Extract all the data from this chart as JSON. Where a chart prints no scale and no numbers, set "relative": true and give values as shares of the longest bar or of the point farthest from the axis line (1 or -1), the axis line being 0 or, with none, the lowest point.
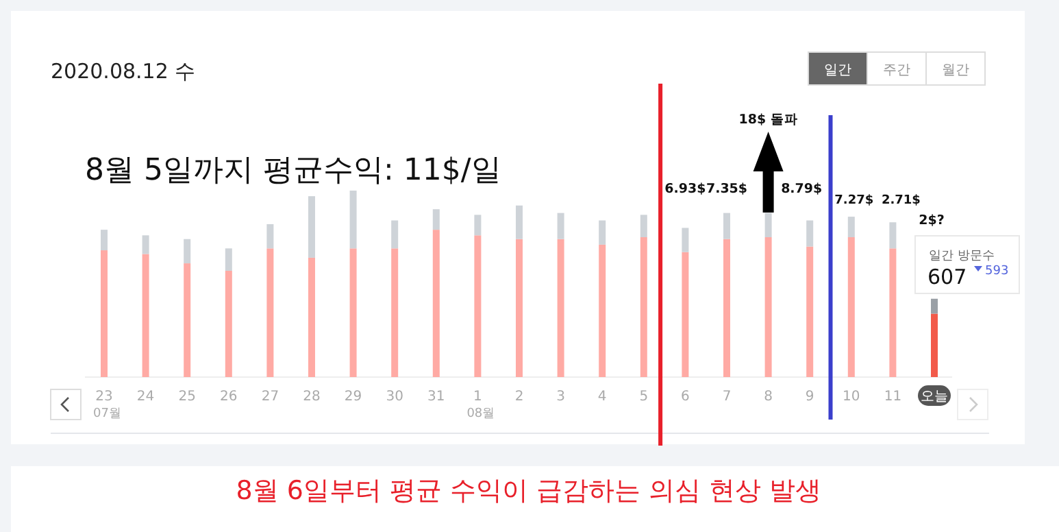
{
  "chart_data": {
    "type": "bar",
    "stacked": true,
    "relative": true,
    "title": "2020.08.12 수",
    "categories": [
      "23",
      "24",
      "25",
      "26",
      "27",
      "28",
      "29",
      "30",
      "31",
      "1",
      "2",
      "3",
      "4",
      "5",
      "6",
      "7",
      "8",
      "9",
      "10",
      "11",
      "오늘"
    ],
    "series": [
      {
        "colors": [
          "#ffaaa4",
          "#ffaaa4",
          "#ffaaa4",
          "#ffaaa4",
          "#ffaaa4",
          "#ffaaa4",
          "#ffaaa4",
          "#ffaaa4",
          "#ffaaa4",
          "#ffaaa4",
          "#ffaaa4",
          "#ffaaa4",
          "#ffaaa4",
          "#ffaaa4",
          "#ffaaa4",
          "#ffaaa4",
          "#ffaaa4",
          "#ffaaa4",
          "#ffaaa4",
          "#ffaaa4",
          "#f25a4a"
        ],
        "values": [
          0.68,
          0.66,
          0.61,
          0.57,
          0.69,
          0.64,
          0.69,
          0.69,
          0.79,
          0.76,
          0.74,
          0.74,
          0.71,
          0.75,
          0.67,
          0.74,
          0.75,
          0.7,
          0.75,
          0.69,
          0.34
        ]
      },
      {
        "colors": [
          "#ced3d8",
          "#ced3d8",
          "#ced3d8",
          "#ced3d8",
          "#ced3d8",
          "#ced3d8",
          "#ced3d8",
          "#ced3d8",
          "#ced3d8",
          "#ced3d8",
          "#ced3d8",
          "#ced3d8",
          "#ced3d8",
          "#ced3d8",
          "#ced3d8",
          "#ced3d8",
          "#ced3d8",
          "#ced3d8",
          "#ced3d8",
          "#ced3d8",
          "#9aa0a6"
        ],
        "values": [
          0.11,
          0.1,
          0.13,
          0.12,
          0.13,
          0.33,
          0.31,
          0.15,
          0.11,
          0.11,
          0.18,
          0.14,
          0.13,
          0.12,
          0.13,
          0.14,
          0.13,
          0.14,
          0.11,
          0.14,
          0.08
        ]
      }
    ],
    "ref_lines": [
      {
        "axis": "x",
        "value": "5",
        "color": "#e8202a"
      },
      {
        "axis": "x",
        "value": "9",
        "color": "#3b3fcc"
      }
    ],
    "annotations": [
      "8월 5일까지 평균수익: 11$/일",
      "일간",
      "주간",
      "월간",
      "일간 방문수",
      "607",
      "593",
      "8월 6일부터 평균 수익이 급감하는 의심 현상 발생",
      "07월",
      "08월",
      "6.93$",
      "7.35$",
      "18$ 돌파",
      "8.79$",
      "7.27$",
      "2.71$",
      "2$?"
    ]
  }
}
